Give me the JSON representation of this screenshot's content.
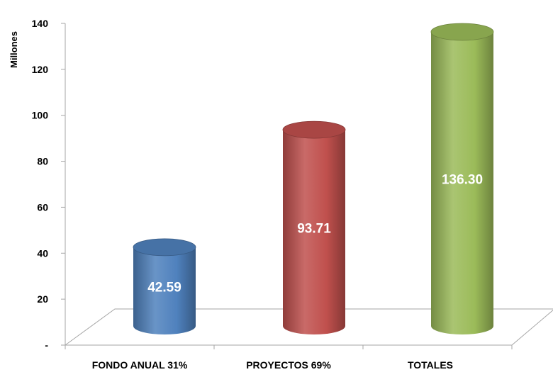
{
  "chart_data": {
    "type": "bar",
    "style": "3d-cylinder",
    "title": "",
    "xlabel": "",
    "ylabel": "Millones",
    "ylim": [
      0,
      140
    ],
    "yticks": [
      {
        "value": 0,
        "label": "-"
      },
      {
        "value": 20,
        "label": "20"
      },
      {
        "value": 40,
        "label": "40"
      },
      {
        "value": 60,
        "label": "60"
      },
      {
        "value": 80,
        "label": "80"
      },
      {
        "value": 100,
        "label": "100"
      },
      {
        "value": 120,
        "label": "120"
      },
      {
        "value": 140,
        "label": "140"
      }
    ],
    "categories": [
      "FONDO ANUAL 31%",
      "PROYECTOS 69%",
      "TOTALES"
    ],
    "values": [
      42.59,
      93.71,
      136.3
    ],
    "data_labels": [
      "42.59",
      "93.71",
      "136.30"
    ],
    "colors": [
      "#4f81bd",
      "#c0504d",
      "#9bbb59"
    ],
    "grid": false,
    "legend": "none"
  }
}
